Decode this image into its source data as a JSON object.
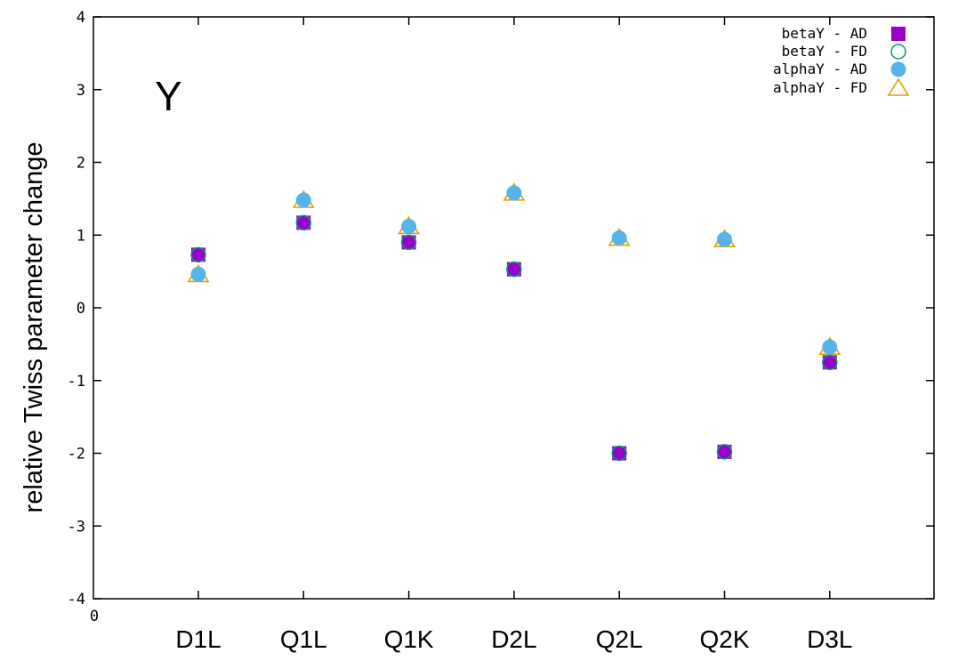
{
  "chart_data": {
    "type": "scatter",
    "panel_label": "Y",
    "ylabel": "relative Twiss parameter change",
    "ylim": [
      -4,
      4
    ],
    "yticks": [
      "4",
      "3",
      "2",
      "1",
      "0",
      "-1",
      "-2",
      "-3",
      "-4"
    ],
    "x_origin_label": "0",
    "categories": [
      "D1L",
      "Q1L",
      "Q1K",
      "D2L",
      "Q2L",
      "Q2K",
      "D3L"
    ],
    "legend_position": "top-right",
    "series": [
      {
        "name": "betaY - AD",
        "marker": "square",
        "color": "#9900cc",
        "values": [
          0.73,
          1.17,
          0.9,
          0.53,
          -2.0,
          -1.98,
          -0.75
        ]
      },
      {
        "name": "betaY - FD",
        "marker": "circle-open",
        "color": "#009e73",
        "values": [
          0.73,
          1.17,
          0.9,
          0.53,
          -2.0,
          -1.98,
          -0.75
        ]
      },
      {
        "name": "alphaY - AD",
        "marker": "circle-filled",
        "color": "#56b4e9",
        "values": [
          0.46,
          1.48,
          1.12,
          1.58,
          0.96,
          0.94,
          -0.54
        ]
      },
      {
        "name": "alphaY - FD",
        "marker": "triangle-open",
        "color": "#e69f00",
        "values": [
          0.46,
          1.48,
          1.12,
          1.58,
          0.96,
          0.94,
          -0.54
        ]
      }
    ]
  }
}
